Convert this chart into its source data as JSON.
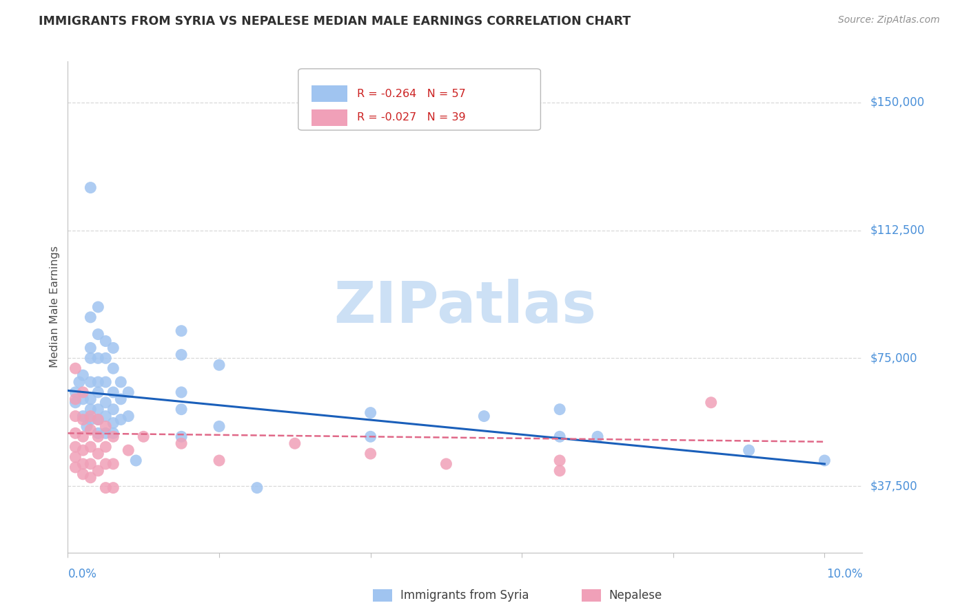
{
  "title": "IMMIGRANTS FROM SYRIA VS NEPALESE MEDIAN MALE EARNINGS CORRELATION CHART",
  "source": "Source: ZipAtlas.com",
  "ylabel": "Median Male Earnings",
  "xlim": [
    0.0,
    0.105
  ],
  "ylim": [
    18000,
    162000
  ],
  "ytick_vals": [
    37500,
    75000,
    112500,
    150000
  ],
  "ytick_labels": [
    "$37,500",
    "$75,000",
    "$112,500",
    "$150,000"
  ],
  "legend_syria_R": "-0.264",
  "legend_syria_N": "57",
  "legend_nepal_R": "-0.027",
  "legend_nepal_N": "39",
  "legend_label_syria": "Immigrants from Syria",
  "legend_label_nepal": "Nepalese",
  "syria_color": "#a0c4f0",
  "nepal_color": "#f0a0b8",
  "syria_line_color": "#1a5fba",
  "nepal_line_color": "#e06888",
  "title_color": "#303030",
  "source_color": "#909090",
  "ylabel_color": "#505050",
  "ytick_color": "#4a90d9",
  "xtick_color": "#4a90d9",
  "grid_color": "#d8d8d8",
  "axis_color": "#c0c0c0",
  "watermark": "ZIPatlas",
  "watermark_color": "#cce0f5",
  "background": "#ffffff",
  "syria_pts": [
    [
      0.001,
      65000
    ],
    [
      0.001,
      62000
    ],
    [
      0.0015,
      68000
    ],
    [
      0.002,
      70000
    ],
    [
      0.002,
      63000
    ],
    [
      0.002,
      58000
    ],
    [
      0.0025,
      55000
    ],
    [
      0.003,
      125000
    ],
    [
      0.003,
      87000
    ],
    [
      0.003,
      78000
    ],
    [
      0.003,
      75000
    ],
    [
      0.003,
      68000
    ],
    [
      0.003,
      63000
    ],
    [
      0.003,
      60000
    ],
    [
      0.003,
      57000
    ],
    [
      0.004,
      90000
    ],
    [
      0.004,
      82000
    ],
    [
      0.004,
      75000
    ],
    [
      0.004,
      68000
    ],
    [
      0.004,
      65000
    ],
    [
      0.004,
      60000
    ],
    [
      0.004,
      57000
    ],
    [
      0.004,
      53000
    ],
    [
      0.005,
      80000
    ],
    [
      0.005,
      75000
    ],
    [
      0.005,
      68000
    ],
    [
      0.005,
      62000
    ],
    [
      0.005,
      58000
    ],
    [
      0.005,
      53000
    ],
    [
      0.006,
      78000
    ],
    [
      0.006,
      72000
    ],
    [
      0.006,
      65000
    ],
    [
      0.006,
      60000
    ],
    [
      0.006,
      56000
    ],
    [
      0.006,
      53000
    ],
    [
      0.007,
      68000
    ],
    [
      0.007,
      63000
    ],
    [
      0.007,
      57000
    ],
    [
      0.008,
      65000
    ],
    [
      0.008,
      58000
    ],
    [
      0.009,
      45000
    ],
    [
      0.015,
      83000
    ],
    [
      0.015,
      76000
    ],
    [
      0.015,
      65000
    ],
    [
      0.015,
      60000
    ],
    [
      0.015,
      52000
    ],
    [
      0.02,
      73000
    ],
    [
      0.02,
      55000
    ],
    [
      0.025,
      37000
    ],
    [
      0.04,
      59000
    ],
    [
      0.04,
      52000
    ],
    [
      0.055,
      58000
    ],
    [
      0.065,
      60000
    ],
    [
      0.065,
      52000
    ],
    [
      0.07,
      52000
    ],
    [
      0.09,
      48000
    ],
    [
      0.1,
      45000
    ]
  ],
  "nepal_pts": [
    [
      0.001,
      72000
    ],
    [
      0.001,
      63000
    ],
    [
      0.001,
      58000
    ],
    [
      0.001,
      53000
    ],
    [
      0.001,
      49000
    ],
    [
      0.001,
      46000
    ],
    [
      0.001,
      43000
    ],
    [
      0.002,
      65000
    ],
    [
      0.002,
      57000
    ],
    [
      0.002,
      52000
    ],
    [
      0.002,
      48000
    ],
    [
      0.002,
      44000
    ],
    [
      0.002,
      41000
    ],
    [
      0.003,
      58000
    ],
    [
      0.003,
      54000
    ],
    [
      0.003,
      49000
    ],
    [
      0.003,
      44000
    ],
    [
      0.003,
      40000
    ],
    [
      0.004,
      57000
    ],
    [
      0.004,
      52000
    ],
    [
      0.004,
      47000
    ],
    [
      0.004,
      42000
    ],
    [
      0.005,
      55000
    ],
    [
      0.005,
      49000
    ],
    [
      0.005,
      44000
    ],
    [
      0.005,
      37000
    ],
    [
      0.006,
      52000
    ],
    [
      0.006,
      44000
    ],
    [
      0.006,
      37000
    ],
    [
      0.008,
      48000
    ],
    [
      0.01,
      52000
    ],
    [
      0.015,
      50000
    ],
    [
      0.02,
      45000
    ],
    [
      0.03,
      50000
    ],
    [
      0.04,
      47000
    ],
    [
      0.05,
      44000
    ],
    [
      0.065,
      45000
    ],
    [
      0.065,
      42000
    ],
    [
      0.085,
      62000
    ]
  ],
  "syria_line": [
    [
      0.0,
      65500
    ],
    [
      0.1,
      44000
    ]
  ],
  "nepal_line": [
    [
      0.0,
      53000
    ],
    [
      0.1,
      50500
    ]
  ]
}
